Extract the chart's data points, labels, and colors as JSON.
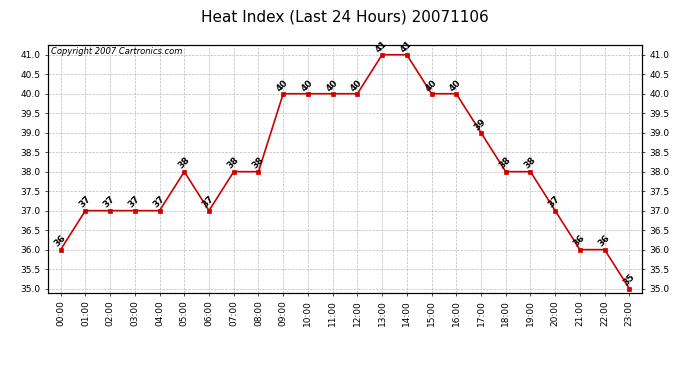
{
  "title": "Heat Index (Last 24 Hours) 20071106",
  "copyright": "Copyright 2007 Cartronics.com",
  "hours": [
    "00:00",
    "01:00",
    "02:00",
    "03:00",
    "04:00",
    "05:00",
    "06:00",
    "07:00",
    "08:00",
    "09:00",
    "10:00",
    "11:00",
    "12:00",
    "13:00",
    "14:00",
    "15:00",
    "16:00",
    "17:00",
    "18:00",
    "19:00",
    "20:00",
    "21:00",
    "22:00",
    "23:00"
  ],
  "values": [
    36,
    37,
    37,
    37,
    37,
    38,
    37,
    38,
    38,
    40,
    40,
    40,
    40,
    41,
    41,
    40,
    40,
    39,
    38,
    38,
    37,
    36,
    36,
    35
  ],
  "ylim": [
    34.9,
    41.25
  ],
  "yticks": [
    35.0,
    35.5,
    36.0,
    36.5,
    37.0,
    37.5,
    38.0,
    38.5,
    39.0,
    39.5,
    40.0,
    40.5,
    41.0
  ],
  "line_color": "#cc0000",
  "marker_color": "#cc0000",
  "bg_color": "#ffffff",
  "grid_color": "#bbbbbb",
  "title_fontsize": 11,
  "label_fontsize": 6.5,
  "copyright_fontsize": 6,
  "annotation_fontsize": 6.5,
  "annotation_color": "#000000"
}
